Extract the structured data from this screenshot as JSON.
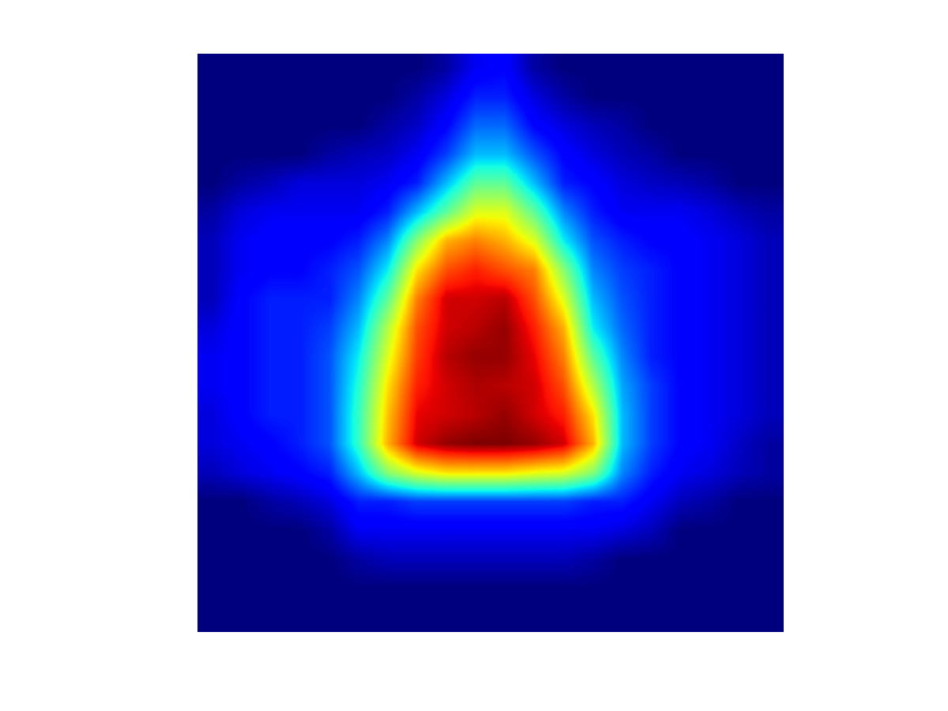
{
  "chart_data": {
    "type": "heatmap",
    "tick_labels": false,
    "values": [
      [
        0,
        0,
        0,
        0,
        0,
        0,
        0,
        0,
        0.03,
        0.1,
        0.12,
        0.03,
        0,
        0,
        0,
        0,
        0,
        0,
        0,
        0
      ],
      [
        0,
        0,
        0,
        0,
        0,
        0,
        0,
        0.03,
        0.08,
        0.15,
        0.15,
        0.08,
        0.03,
        0,
        0,
        0,
        0,
        0,
        0,
        0
      ],
      [
        0,
        0,
        0,
        0,
        0,
        0,
        0.03,
        0.06,
        0.12,
        0.22,
        0.22,
        0.12,
        0.08,
        0.05,
        0.03,
        0,
        0,
        0,
        0,
        0
      ],
      [
        0,
        0,
        0,
        0,
        0.03,
        0.05,
        0.06,
        0.1,
        0.18,
        0.3,
        0.3,
        0.2,
        0.12,
        0.08,
        0.05,
        0.03,
        0,
        0,
        0,
        0
      ],
      [
        0,
        0.03,
        0.05,
        0.08,
        0.08,
        0.08,
        0.1,
        0.15,
        0.3,
        0.45,
        0.45,
        0.3,
        0.15,
        0.12,
        0.08,
        0.06,
        0.05,
        0.03,
        0,
        0
      ],
      [
        0.03,
        0.08,
        0.1,
        0.1,
        0.1,
        0.1,
        0.15,
        0.3,
        0.45,
        0.6,
        0.6,
        0.45,
        0.25,
        0.15,
        0.1,
        0.1,
        0.1,
        0.08,
        0.05,
        0.03
      ],
      [
        0.05,
        0.1,
        0.12,
        0.12,
        0.12,
        0.15,
        0.25,
        0.5,
        0.7,
        0.75,
        0.7,
        0.6,
        0.35,
        0.2,
        0.15,
        0.12,
        0.12,
        0.1,
        0.08,
        0.05
      ],
      [
        0.05,
        0.1,
        0.12,
        0.12,
        0.15,
        0.2,
        0.35,
        0.65,
        0.8,
        0.85,
        0.8,
        0.75,
        0.5,
        0.25,
        0.18,
        0.15,
        0.12,
        0.1,
        0.08,
        0.05
      ],
      [
        0.05,
        0.12,
        0.15,
        0.15,
        0.15,
        0.25,
        0.45,
        0.75,
        0.9,
        0.9,
        0.92,
        0.8,
        0.6,
        0.3,
        0.2,
        0.15,
        0.12,
        0.1,
        0.08,
        0.05
      ],
      [
        0.08,
        0.12,
        0.15,
        0.15,
        0.18,
        0.3,
        0.55,
        0.8,
        0.9,
        0.92,
        0.95,
        0.85,
        0.7,
        0.35,
        0.22,
        0.15,
        0.12,
        0.1,
        0.08,
        0.05
      ],
      [
        0.1,
        0.12,
        0.15,
        0.15,
        0.2,
        0.35,
        0.6,
        0.82,
        0.92,
        0.95,
        0.95,
        0.88,
        0.75,
        0.45,
        0.25,
        0.15,
        0.12,
        0.1,
        0.08,
        0.05
      ],
      [
        0.1,
        0.12,
        0.15,
        0.15,
        0.2,
        0.38,
        0.65,
        0.85,
        0.9,
        0.93,
        0.92,
        0.9,
        0.8,
        0.55,
        0.28,
        0.18,
        0.12,
        0.1,
        0.08,
        0.05
      ],
      [
        0.08,
        0.12,
        0.15,
        0.15,
        0.2,
        0.4,
        0.68,
        0.88,
        0.9,
        0.92,
        0.95,
        0.9,
        0.85,
        0.65,
        0.3,
        0.18,
        0.12,
        0.1,
        0.08,
        0.05
      ],
      [
        0.08,
        0.1,
        0.12,
        0.15,
        0.2,
        0.4,
        0.7,
        0.9,
        0.95,
        0.97,
        0.97,
        0.95,
        0.9,
        0.7,
        0.3,
        0.18,
        0.12,
        0.1,
        0.06,
        0.03
      ],
      [
        0.05,
        0.08,
        0.1,
        0.12,
        0.15,
        0.3,
        0.5,
        0.6,
        0.65,
        0.65,
        0.65,
        0.62,
        0.6,
        0.5,
        0.25,
        0.15,
        0.1,
        0.08,
        0.05,
        0.03
      ],
      [
        0,
        0,
        0.03,
        0.05,
        0.08,
        0.15,
        0.15,
        0.18,
        0.18,
        0.18,
        0.18,
        0.18,
        0.18,
        0.15,
        0.15,
        0.1,
        0.05,
        0.03,
        0,
        0
      ],
      [
        0,
        0,
        0,
        0,
        0.03,
        0.1,
        0.1,
        0.1,
        0.1,
        0.1,
        0.1,
        0.1,
        0.1,
        0.1,
        0.08,
        0.05,
        0,
        0,
        0,
        0
      ],
      [
        0,
        0,
        0,
        0,
        0,
        0.03,
        0.05,
        0.05,
        0.05,
        0.05,
        0.05,
        0.05,
        0.05,
        0.03,
        0,
        0,
        0,
        0,
        0,
        0
      ],
      [
        0,
        0,
        0,
        0,
        0,
        0,
        0,
        0,
        0,
        0,
        0,
        0,
        0,
        0,
        0,
        0,
        0,
        0,
        0,
        0
      ],
      [
        0,
        0,
        0,
        0,
        0,
        0,
        0,
        0,
        0,
        0,
        0,
        0,
        0,
        0,
        0,
        0,
        0,
        0,
        0,
        0
      ]
    ]
  }
}
